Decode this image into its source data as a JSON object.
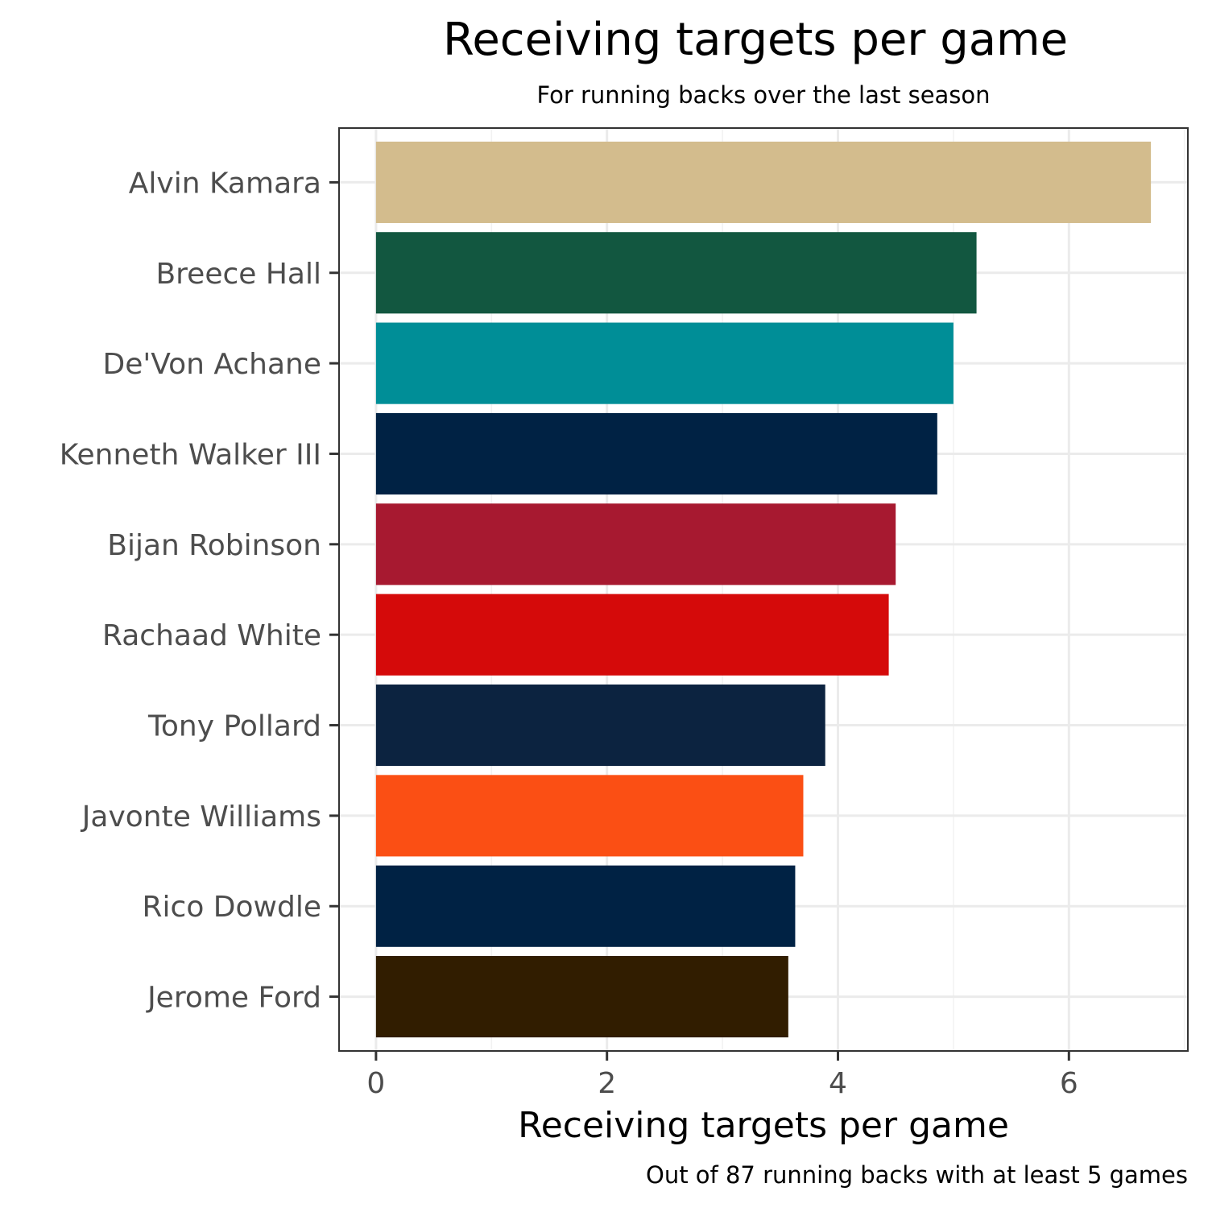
{
  "chart_data": {
    "type": "bar",
    "orientation": "horizontal",
    "title": "Receiving targets per game",
    "subtitle": "For running backs over the last season",
    "xlabel": "Receiving targets per game",
    "ylabel": "",
    "caption": "Out of 87 running backs with at least 5 games",
    "xlim": [
      -0.32,
      7.03
    ],
    "xticks": [
      0,
      2,
      4,
      6
    ],
    "xtick_labels": [
      "0",
      "2",
      "4",
      "6"
    ],
    "grid": true,
    "legend": "none",
    "categories": [
      "Alvin Kamara",
      "Breece Hall",
      "De'Von Achane",
      "Kenneth Walker III",
      "Bijan Robinson",
      "Rachaad White",
      "Tony Pollard",
      "Javonte Williams",
      "Rico Dowdle",
      "Jerome Ford"
    ],
    "values": [
      6.71,
      5.2,
      5.0,
      4.86,
      4.5,
      4.44,
      3.89,
      3.7,
      3.63,
      3.57
    ],
    "colors": [
      "#D3BC8D",
      "#125740",
      "#008E97",
      "#002244",
      "#A71930",
      "#D50A0A",
      "#0C2340",
      "#FB4F14",
      "#002244",
      "#311D00"
    ]
  }
}
